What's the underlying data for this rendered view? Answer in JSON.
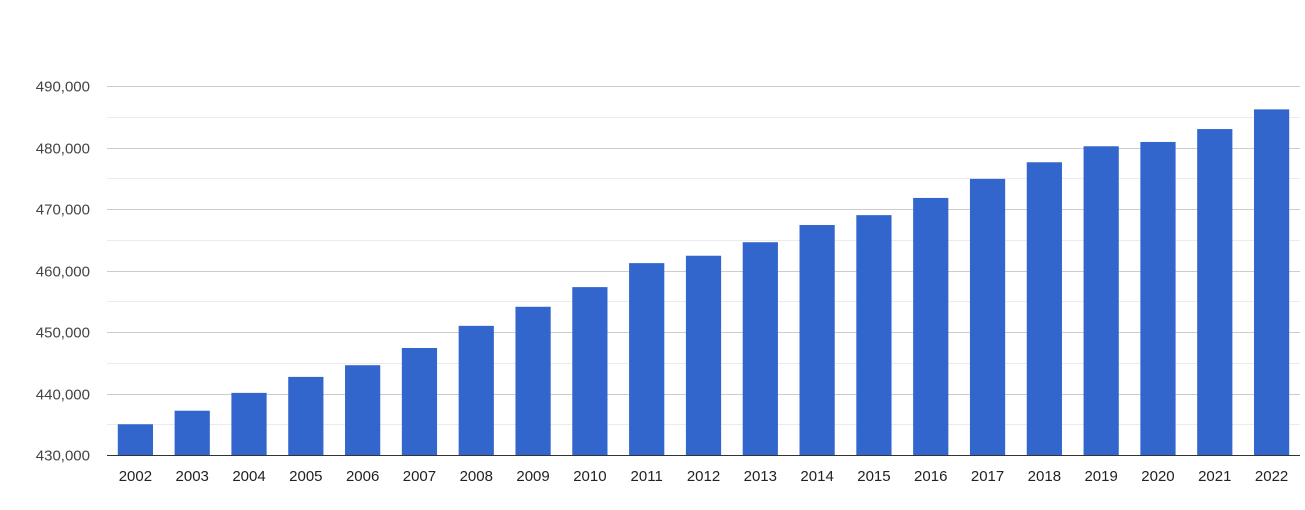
{
  "chart_data": {
    "type": "bar",
    "title": "",
    "xlabel": "",
    "ylabel": "",
    "categories": [
      "2002",
      "2003",
      "2004",
      "2005",
      "2006",
      "2007",
      "2008",
      "2009",
      "2010",
      "2011",
      "2012",
      "2013",
      "2014",
      "2015",
      "2016",
      "2017",
      "2018",
      "2019",
      "2020",
      "2021",
      "2022"
    ],
    "values": [
      435000,
      437200,
      440100,
      442700,
      444600,
      447400,
      451000,
      454100,
      457300,
      461200,
      462400,
      464600,
      467400,
      469000,
      471800,
      474900,
      477600,
      480200,
      480900,
      483000,
      486200
    ],
    "ylim": [
      430000,
      490000
    ],
    "yticks": [
      430000,
      440000,
      450000,
      460000,
      470000,
      480000,
      490000
    ],
    "ytick_labels": [
      "430,000",
      "440,000",
      "450,000",
      "460,000",
      "470,000",
      "480,000",
      "490,000"
    ],
    "minor_gridlines": true,
    "grid": true,
    "legend": "none",
    "bar_color": "#3366cc"
  }
}
